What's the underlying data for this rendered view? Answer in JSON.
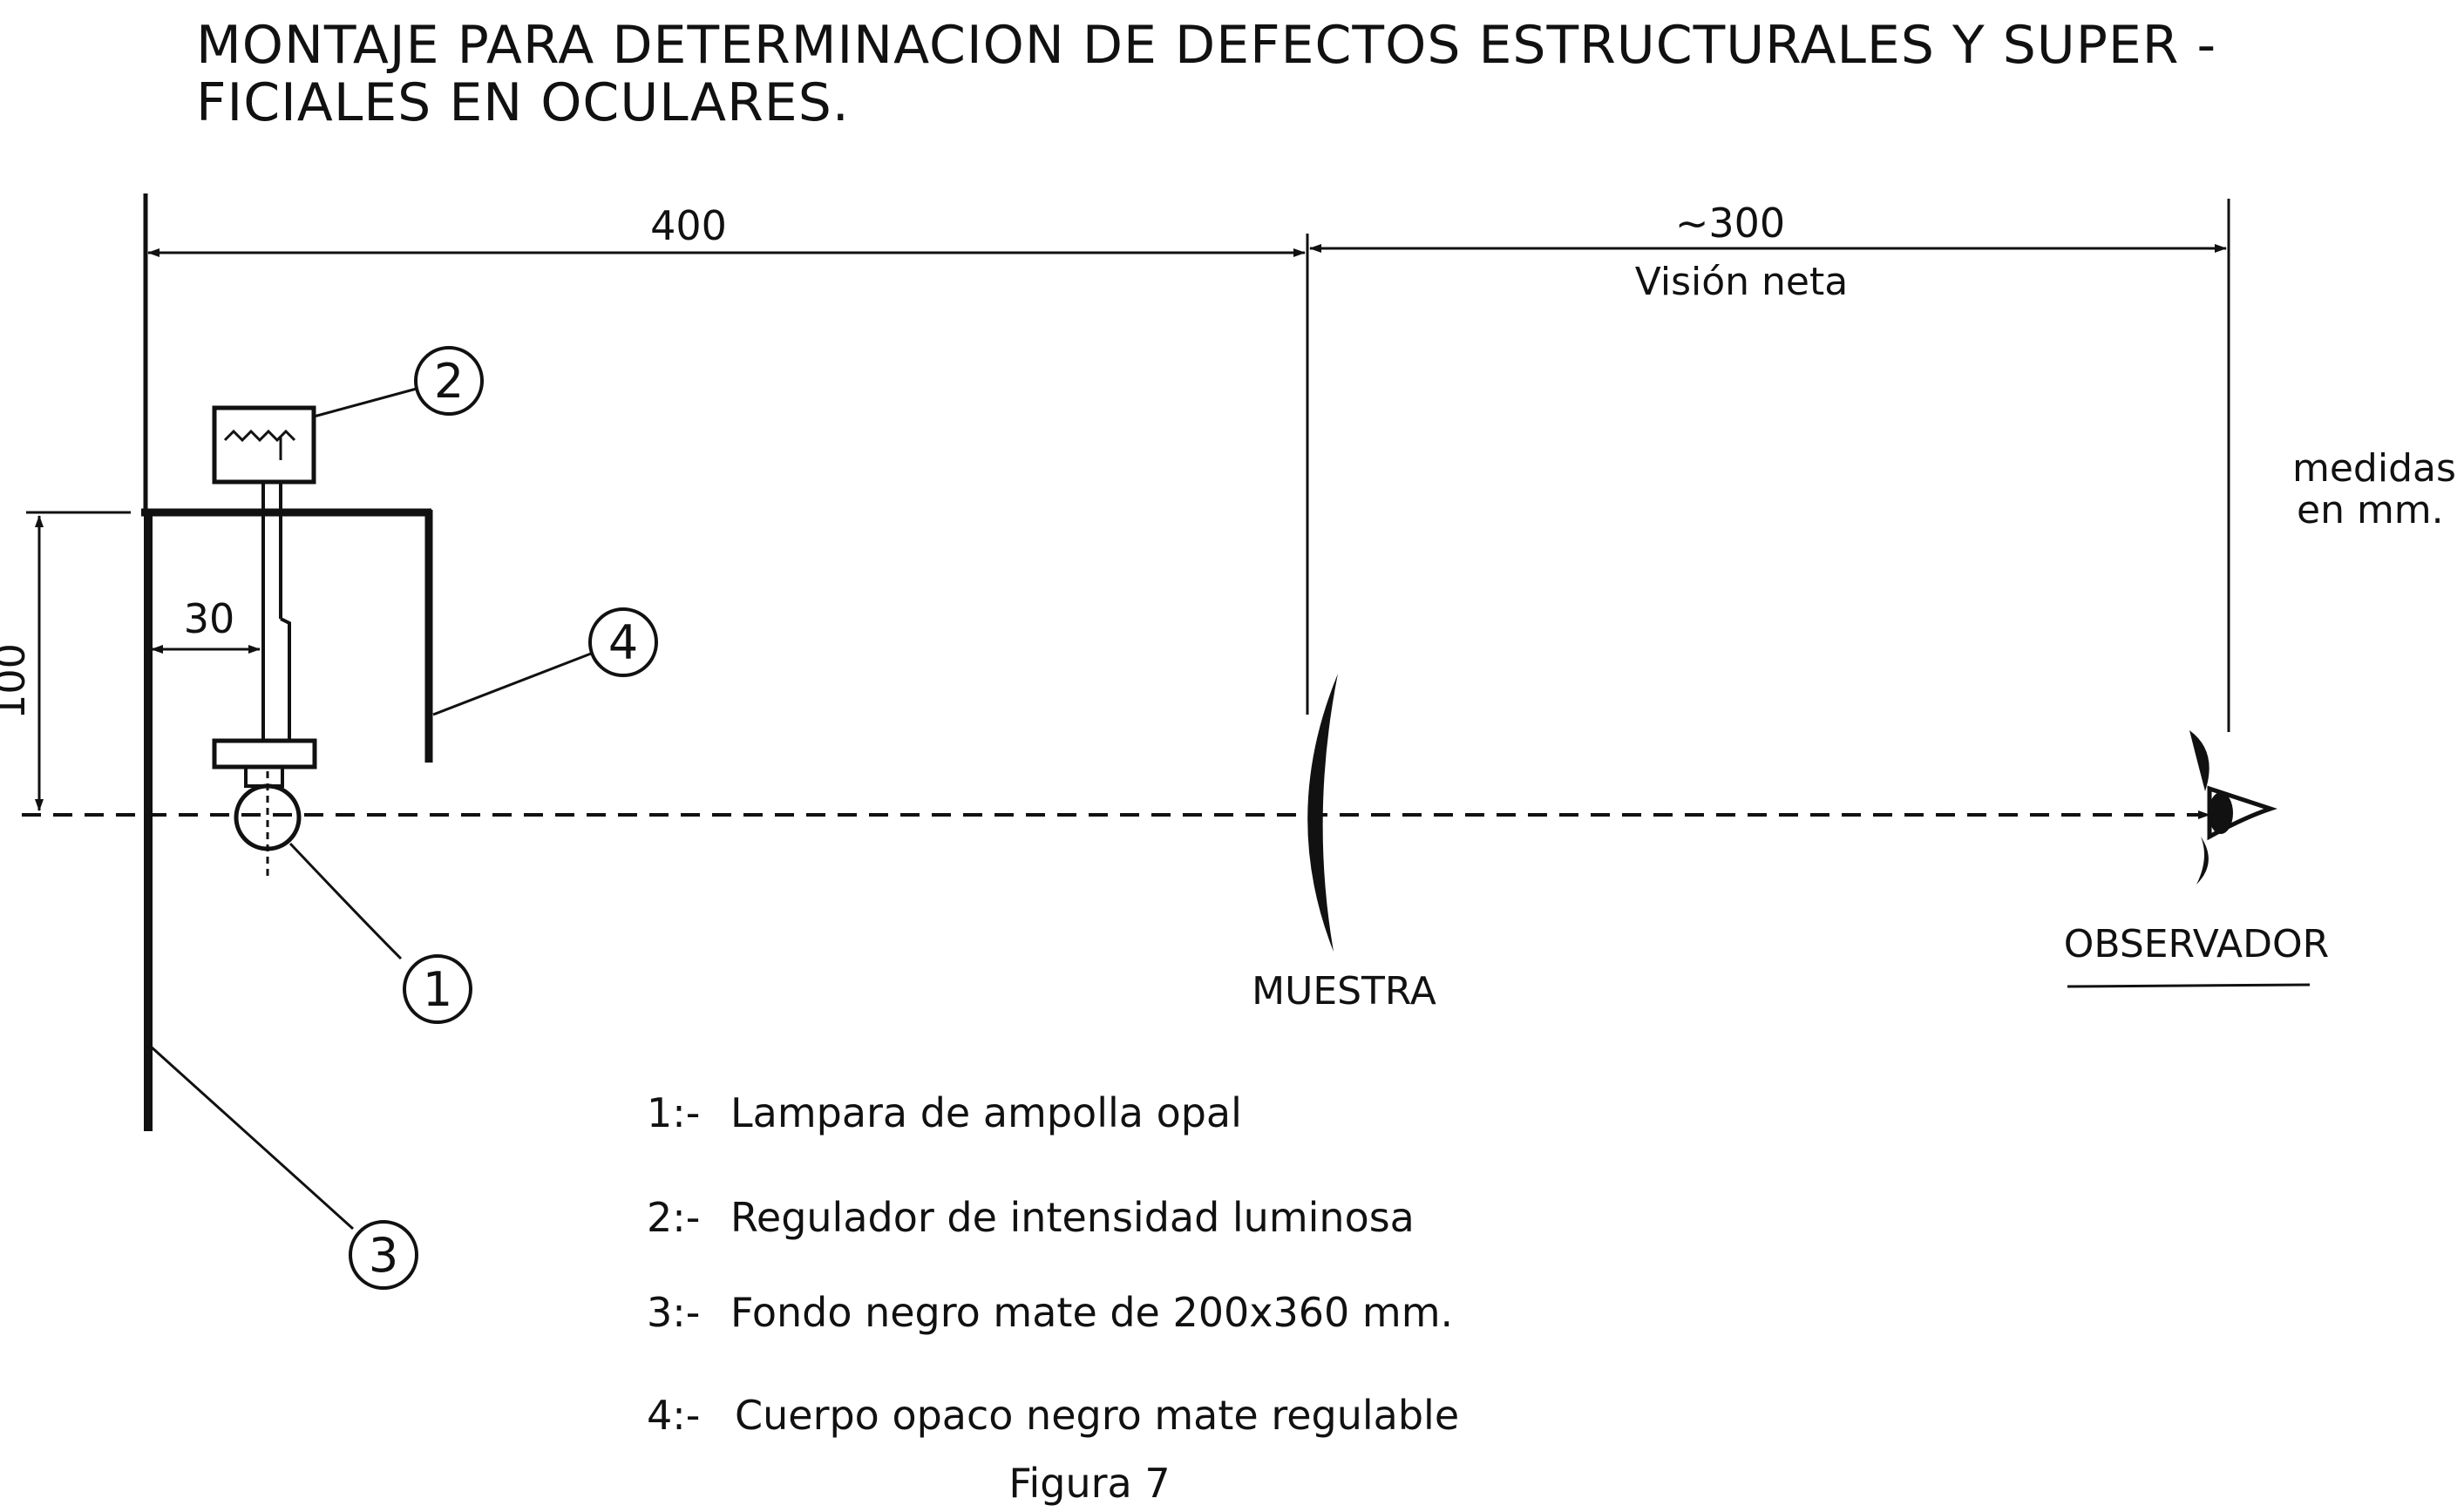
{
  "title": {
    "line1": "MONTAJE PARA DETERMINACION DE DEFECTOS ESTRUCTURALES Y SUPER -",
    "line2": "FICIALES EN OCULARES."
  },
  "dimensions": {
    "d400": "400",
    "d300": "~300",
    "vision": "Visión neta",
    "d100": "100",
    "d30": "30"
  },
  "units_note": {
    "line1": "medidas",
    "line2": "en mm."
  },
  "labels": {
    "muestra": "MUESTRA",
    "observador": "OBSERVADOR"
  },
  "callouts": [
    "1",
    "2",
    "3",
    "4"
  ],
  "legend": [
    {
      "num": "1:-",
      "text": "Lampara de ampolla opal"
    },
    {
      "num": "2:-",
      "text": "Regulador de intensidad luminosa"
    },
    {
      "num": "3:-",
      "text": "Fondo negro mate de 200x360 mm."
    },
    {
      "num": "4:-",
      "text": "Cuerpo opaco negro mate regulable"
    }
  ],
  "caption": "Figura 7",
  "colors": {
    "ink": "#111111",
    "paper": "#ffffff"
  }
}
